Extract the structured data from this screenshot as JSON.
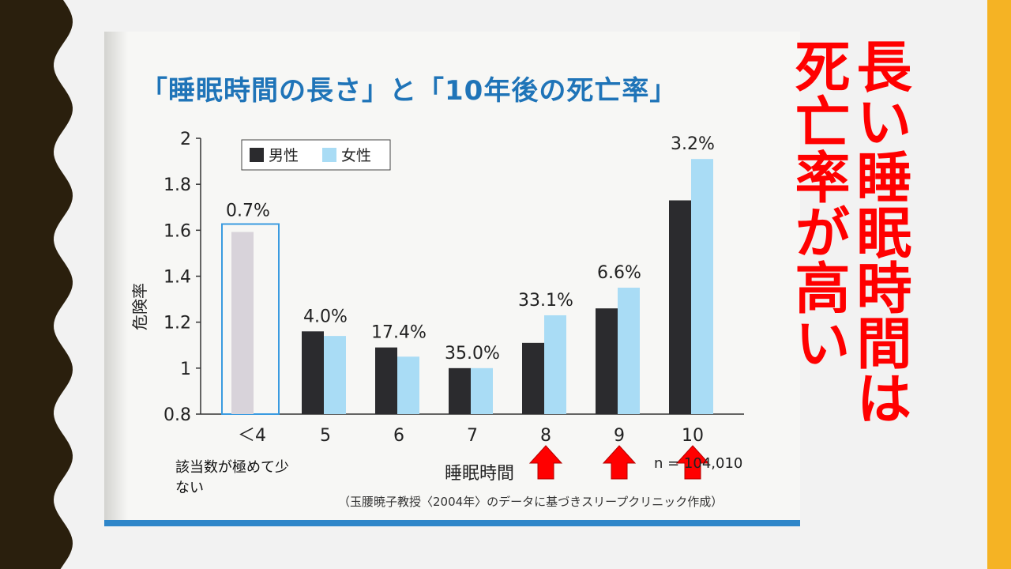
{
  "title": "「睡眠時間の長さ」と「10年後の死亡率」",
  "callout": {
    "line1": "長い睡眠時間は",
    "line2": "死亡率が高い"
  },
  "note": "該当数が極めて少ない",
  "n_label": "n = 104,010",
  "credit": "（玉腰暁子教授〈2004年〉のデータに基づきスリープクリニック作成）",
  "colors": {
    "male": "#2b2b2e",
    "female": "#a9dcf5",
    "title": "#1f74b8",
    "callout": "#ff0000",
    "arrow": "#ff0000",
    "left_band": "#2a1f0d",
    "right_band": "#f5b324"
  },
  "icons": {
    "arrows": "up-arrow-icon"
  },
  "chart_data": {
    "type": "bar",
    "title": "「睡眠時間の長さ」と「10年後の死亡率」",
    "ylabel": "危険率",
    "xlabel": "睡眠時間",
    "categories": [
      "＜4",
      "5",
      "6",
      "7",
      "8",
      "9",
      "10"
    ],
    "ylim": [
      0.8,
      2
    ],
    "yticks": [
      "0.8",
      "1",
      "1.2",
      "1.4",
      "1.6",
      "1.8",
      "2"
    ],
    "legend_position": "top-left",
    "grid": false,
    "series": [
      {
        "name": "男性",
        "values": [
          1.62,
          1.16,
          1.09,
          1.0,
          1.11,
          1.26,
          1.73
        ]
      },
      {
        "name": "女性",
        "values": [
          1.62,
          1.14,
          1.05,
          1.0,
          1.23,
          1.35,
          1.91
        ]
      }
    ],
    "bar_labels": [
      "0.7%",
      "4.0%",
      "17.4%",
      "35.0%",
      "33.1%",
      "6.6%",
      "3.2%"
    ],
    "highlighted_categories": [
      "＜4"
    ],
    "arrow_categories": [
      "8",
      "9",
      "10"
    ]
  }
}
